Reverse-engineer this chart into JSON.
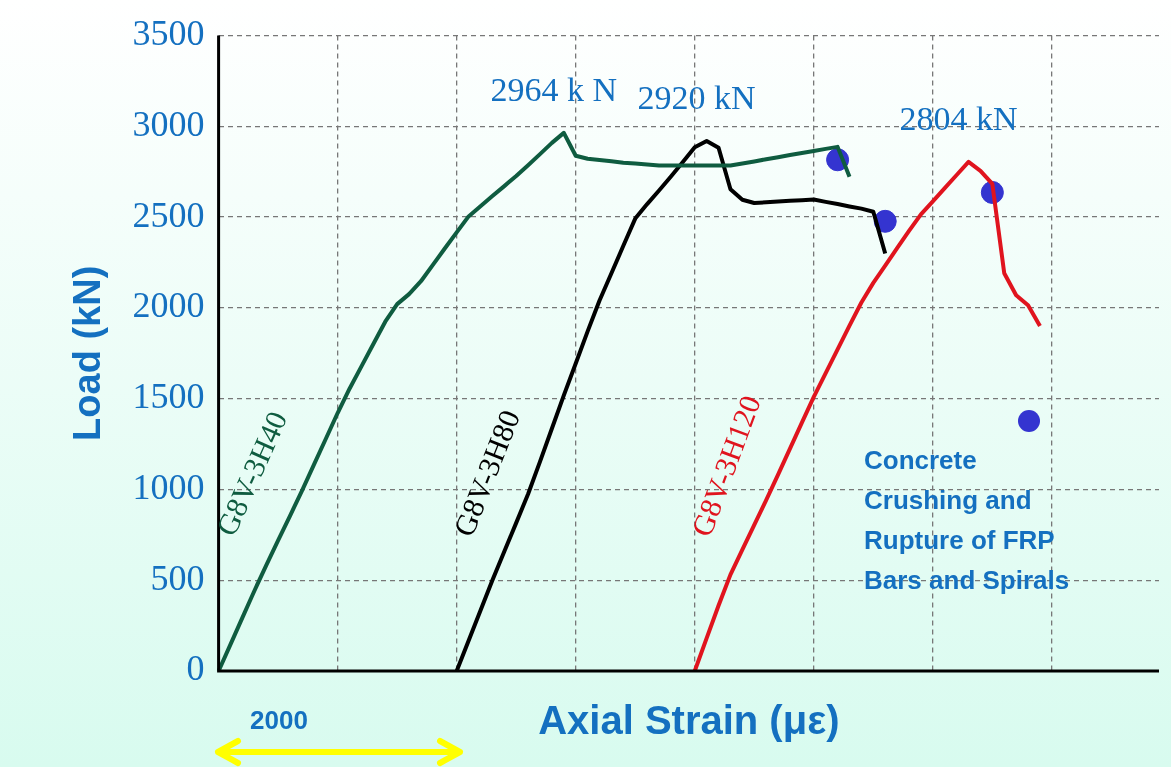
{
  "chart_data": {
    "type": "line",
    "xlabel": "Axial Strain (με)",
    "ylabel": "Load (kN)",
    "categories": [
      null,
      null,
      null,
      null,
      null,
      null,
      null,
      null,
      null,
      null,
      null,
      null,
      null,
      null,
      null,
      null,
      null,
      null,
      null,
      null,
      null,
      null,
      null,
      null,
      null,
      null,
      null,
      null,
      null,
      null,
      null,
      null,
      null,
      null,
      null,
      null,
      null,
      null,
      null,
      null,
      null,
      null,
      null,
      null,
      null,
      null,
      null,
      null,
      null,
      null,
      null,
      null,
      null,
      null,
      null,
      null,
      null,
      null,
      null,
      null,
      null,
      null,
      null,
      null,
      null,
      null,
      null,
      null,
      null,
      null,
      null,
      null,
      null,
      null,
      null,
      null,
      null,
      null,
      null,
      null
    ],
    "ylim": [
      0,
      3500
    ],
    "yticks": [
      0,
      500,
      1000,
      1500,
      2000,
      2500,
      3000,
      3500
    ],
    "tick_labels": "y",
    "grid": true,
    "legend": "bottom right",
    "line_style": "solid",
    "series": [
      {
        "name": "G8V-3H40",
        "color": "#0f5c40",
        "marker": "none",
        "values": [
          0,
          147,
          294,
          441,
          582,
          719,
          855,
          992,
          1135,
          1278,
          1421,
          1555,
          1678,
          1801,
          1924,
          2021,
          2076,
          2147,
          2237,
          2327,
          2416,
          2504,
          2560,
          2616,
          2671,
          2727,
          2786,
          2847,
          2909,
          2964,
          2838,
          2822,
          2815,
          2808,
          2800,
          2795,
          2790,
          2784,
          2784,
          2784,
          2784,
          2784,
          2784,
          2785,
          2796,
          2807,
          2819,
          2830,
          2842,
          2853,
          2864,
          2876,
          2887,
          2722,
          null,
          null,
          null,
          null,
          null,
          null,
          null,
          null,
          null,
          null,
          null,
          null,
          null,
          null,
          null,
          null,
          null,
          null,
          null,
          null,
          null,
          null,
          null,
          null,
          null,
          null
        ]
      },
      {
        "name": "G8V-3H80",
        "color": "#000000",
        "marker": "none",
        "values": [
          null,
          null,
          null,
          null,
          null,
          null,
          null,
          null,
          null,
          null,
          null,
          null,
          null,
          null,
          null,
          null,
          null,
          null,
          null,
          null,
          0,
          167,
          333,
          500,
          658,
          816,
          975,
          1153,
          1336,
          1518,
          1694,
          1871,
          2041,
          2191,
          2342,
          2492,
          2572,
          2647,
          2724,
          2804,
          2885,
          2920,
          2882,
          2654,
          2596,
          2578,
          2582,
          2586,
          2590,
          2593,
          2597,
          2584,
          2572,
          2559,
          2547,
          2530,
          2300,
          null,
          null,
          null,
          null,
          null,
          null,
          null,
          null,
          null,
          null,
          null,
          null,
          null,
          null,
          null,
          null,
          null,
          null,
          null,
          null,
          null,
          null,
          null
        ]
      },
      {
        "name": "G8V-3H120",
        "color": "#e0141e",
        "marker": "none",
        "values": [
          null,
          null,
          null,
          null,
          null,
          null,
          null,
          null,
          null,
          null,
          null,
          null,
          null,
          null,
          null,
          null,
          null,
          null,
          null,
          null,
          null,
          null,
          null,
          null,
          null,
          null,
          null,
          null,
          null,
          null,
          null,
          null,
          null,
          null,
          null,
          null,
          null,
          null,
          null,
          null,
          0,
          181,
          361,
          531,
          668,
          805,
          941,
          1082,
          1225,
          1368,
          1510,
          1641,
          1772,
          1903,
          2030,
          2138,
          2233,
          2329,
          2424,
          2515,
          2587,
          2660,
          2732,
          2804,
          2755,
          2683,
          2191,
          2070,
          2015,
          1900,
          null,
          null,
          null,
          null,
          null,
          null,
          null,
          null,
          null,
          null
        ]
      },
      {
        "name": "Concrete Crushing and Rupture of FRP Bars and Spirals",
        "color": "#3434d0",
        "type": "scatter",
        "marker": "circle",
        "values": [
          null,
          null,
          null,
          null,
          null,
          null,
          null,
          null,
          null,
          null,
          null,
          null,
          null,
          null,
          null,
          null,
          null,
          null,
          null,
          null,
          null,
          null,
          null,
          null,
          null,
          null,
          null,
          null,
          null,
          null,
          null,
          null,
          null,
          null,
          null,
          null,
          null,
          null,
          null,
          null,
          null,
          null,
          null,
          null,
          null,
          null,
          null,
          null,
          null,
          null,
          null,
          null,
          2816,
          null,
          null,
          null,
          2477,
          null,
          null,
          null,
          null,
          null,
          null,
          null,
          null,
          2636,
          null,
          null,
          null,
          null,
          null,
          null,
          null,
          null,
          null,
          null,
          null,
          null,
          null,
          null
        ]
      }
    ],
    "annotations": [
      "2000",
      "2964 k N",
      "2920 kN",
      "2804 kN"
    ]
  }
}
